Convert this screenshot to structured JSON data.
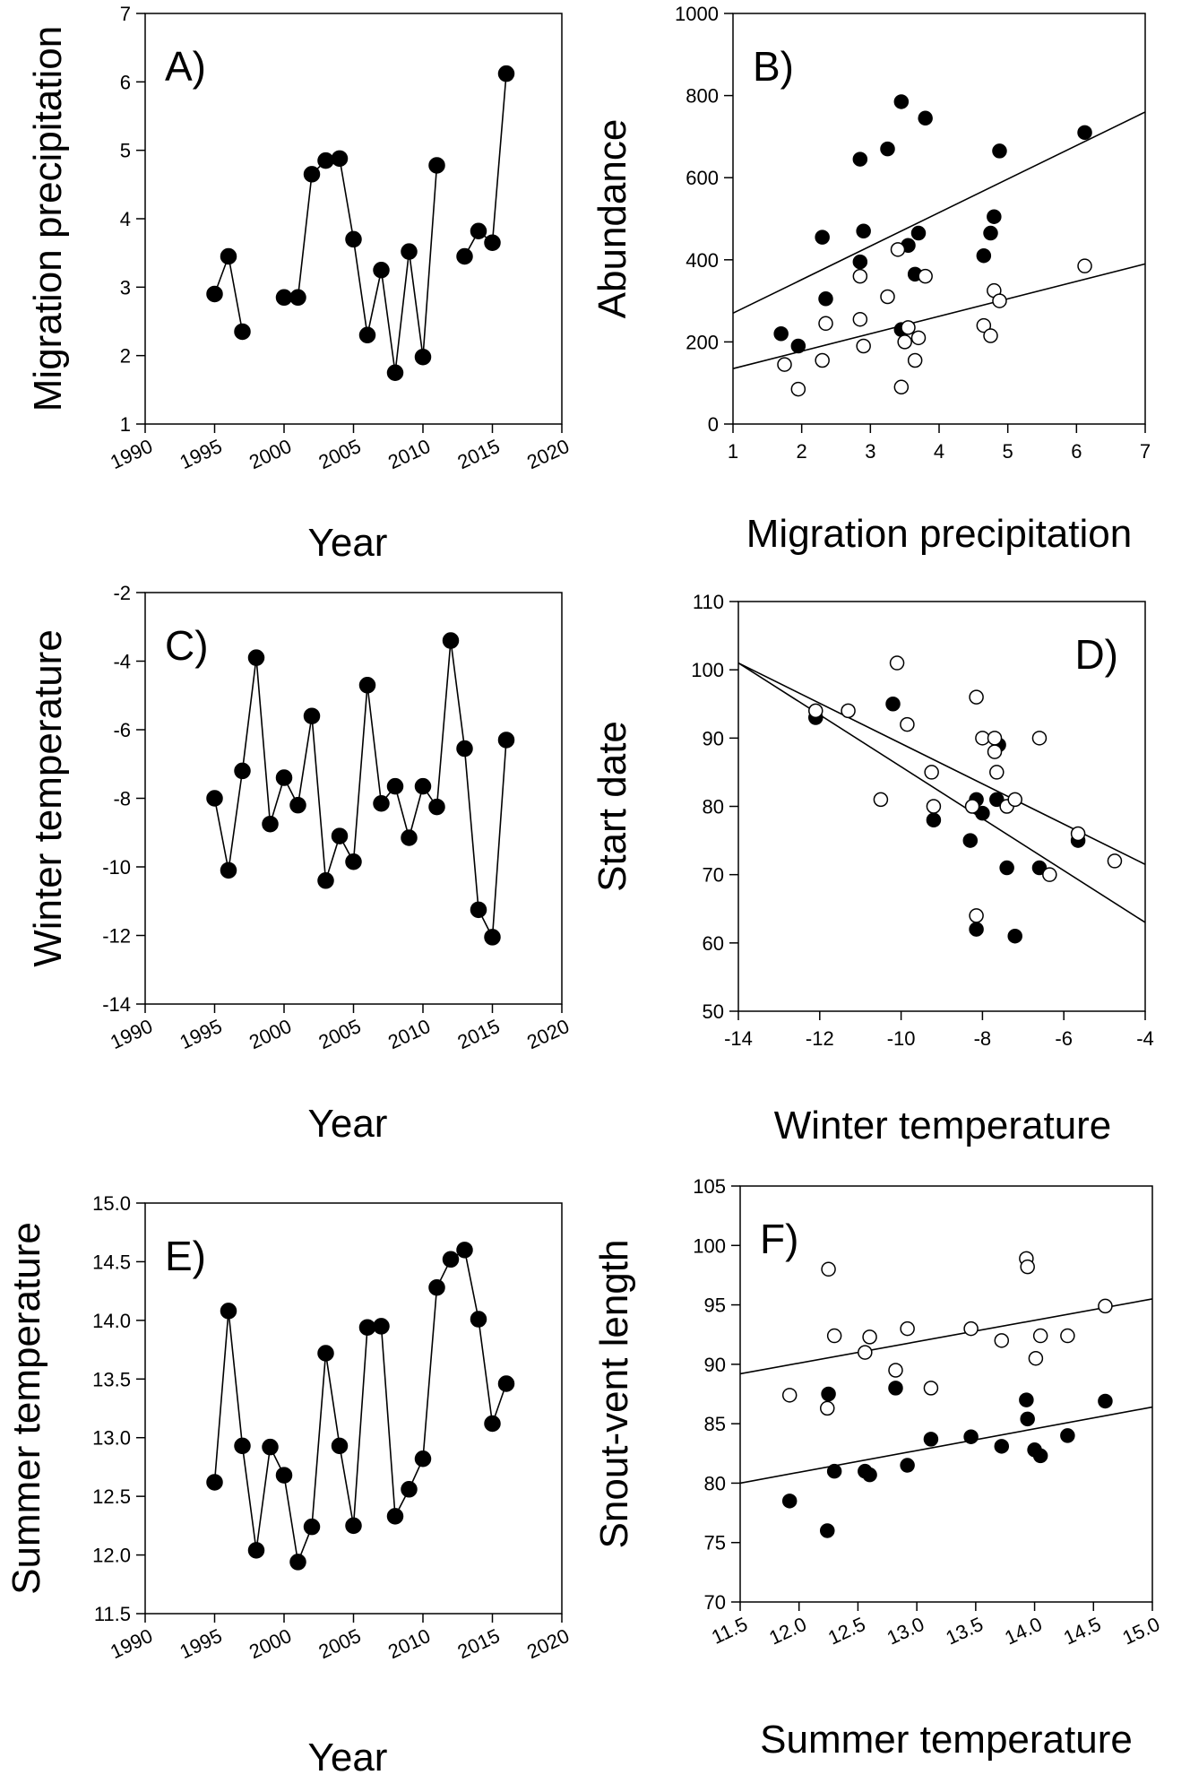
{
  "figure": {
    "background": "#ffffff",
    "ink": "#000000"
  },
  "chart_data": [
    {
      "panel": "A",
      "type": "line",
      "label": "A)",
      "xlabel": "Year",
      "ylabel": "Migration precipitation",
      "xlim": [
        1990,
        2020
      ],
      "ylim": [
        1,
        7
      ],
      "xticks": [
        1990,
        1995,
        2000,
        2005,
        2010,
        2015,
        2020
      ],
      "yticks": [
        1,
        2,
        3,
        4,
        5,
        6,
        7
      ],
      "series": [
        {
          "name": "Migration precipitation",
          "marker": "filled",
          "segments": [
            [
              [
                1995,
                2.9
              ],
              [
                1996,
                3.45
              ],
              [
                1997,
                2.35
              ]
            ],
            [
              [
                2000,
                2.85
              ],
              [
                2001,
                2.85
              ],
              [
                2002,
                4.65
              ],
              [
                2003,
                4.85
              ],
              [
                2004,
                4.88
              ],
              [
                2005,
                3.7
              ],
              [
                2006,
                2.3
              ],
              [
                2007,
                3.25
              ],
              [
                2008,
                1.75
              ],
              [
                2009,
                3.52
              ],
              [
                2010,
                1.98
              ],
              [
                2011,
                4.78
              ]
            ],
            [
              [
                2013,
                3.45
              ],
              [
                2014,
                3.82
              ],
              [
                2015,
                3.65
              ],
              [
                2016,
                6.12
              ]
            ]
          ]
        }
      ]
    },
    {
      "panel": "B",
      "type": "scatter",
      "label": "B)",
      "xlabel": "Migration precipitation",
      "ylabel": "Abundance",
      "xlim": [
        1,
        7
      ],
      "ylim": [
        0,
        1000
      ],
      "xticks": [
        1,
        2,
        3,
        4,
        5,
        6,
        7
      ],
      "yticks": [
        0,
        200,
        400,
        600,
        800,
        1000
      ],
      "series": [
        {
          "name": "filled",
          "marker": "filled",
          "x": [
            1.7,
            1.95,
            2.3,
            2.35,
            2.85,
            2.85,
            2.9,
            3.25,
            3.45,
            3.45,
            3.55,
            3.65,
            3.7,
            3.8,
            4.65,
            4.75,
            4.8,
            4.88,
            6.12
          ],
          "y": [
            220,
            190,
            455,
            305,
            645,
            395,
            470,
            670,
            785,
            230,
            435,
            365,
            465,
            745,
            410,
            465,
            505,
            665,
            710
          ],
          "fit": [
            [
              1,
              270
            ],
            [
              7,
              760
            ]
          ]
        },
        {
          "name": "open",
          "marker": "open",
          "x": [
            1.75,
            1.95,
            2.3,
            2.35,
            2.85,
            2.85,
            2.9,
            3.25,
            3.4,
            3.45,
            3.5,
            3.55,
            3.7,
            3.8,
            3.65,
            4.65,
            4.75,
            4.8,
            4.88,
            6.12
          ],
          "y": [
            145,
            85,
            155,
            245,
            360,
            255,
            190,
            310,
            425,
            90,
            200,
            235,
            210,
            360,
            155,
            240,
            215,
            325,
            300,
            385
          ],
          "fit": [
            [
              1,
              135
            ],
            [
              7,
              390
            ]
          ]
        }
      ]
    },
    {
      "panel": "C",
      "type": "line",
      "label": "C)",
      "xlabel": "Year",
      "ylabel": "Winter temperature",
      "xlim": [
        1990,
        2020
      ],
      "ylim": [
        -14,
        -2
      ],
      "xticks": [
        1990,
        1995,
        2000,
        2005,
        2010,
        2015,
        2020
      ],
      "yticks": [
        -14,
        -12,
        -10,
        -8,
        -6,
        -4,
        -2
      ],
      "series": [
        {
          "name": "Winter temperature",
          "marker": "filled",
          "segments": [
            [
              [
                1995,
                -8.0
              ],
              [
                1996,
                -10.1
              ],
              [
                1997,
                -7.2
              ],
              [
                1998,
                -3.9
              ],
              [
                1999,
                -8.75
              ],
              [
                2000,
                -7.4
              ],
              [
                2001,
                -8.2
              ],
              [
                2002,
                -5.6
              ],
              [
                2003,
                -10.4
              ],
              [
                2004,
                -9.1
              ],
              [
                2005,
                -9.85
              ],
              [
                2006,
                -4.7
              ],
              [
                2007,
                -8.15
              ],
              [
                2008,
                -7.65
              ],
              [
                2009,
                -9.15
              ],
              [
                2010,
                -7.65
              ],
              [
                2011,
                -8.25
              ],
              [
                2012,
                -3.4
              ],
              [
                2013,
                -6.55
              ],
              [
                2014,
                -11.25
              ],
              [
                2015,
                -12.05
              ],
              [
                2016,
                -6.3
              ]
            ]
          ]
        }
      ]
    },
    {
      "panel": "D",
      "type": "scatter",
      "label": "D)",
      "xlabel": "Winter temperature",
      "ylabel": "Start date",
      "xlim": [
        -14,
        -4
      ],
      "ylim": [
        50,
        110
      ],
      "xticks": [
        -14,
        -12,
        -10,
        -8,
        -6,
        -4
      ],
      "yticks": [
        50,
        60,
        70,
        80,
        90,
        100,
        110
      ],
      "series": [
        {
          "name": "filled",
          "marker": "filled",
          "x": [
            -12.1,
            -10.2,
            -9.2,
            -8.3,
            -8.15,
            -8.0,
            -8.15,
            -7.6,
            -7.65,
            -7.4,
            -7.2,
            -6.6,
            -5.65
          ],
          "y": [
            93,
            95,
            78,
            75,
            81,
            79,
            62,
            89,
            81,
            71,
            61,
            71,
            75
          ],
          "fit": [
            [
              -14,
              101
            ],
            [
              -4,
              63
            ]
          ]
        },
        {
          "name": "open",
          "marker": "open",
          "x": [
            -12.1,
            -11.3,
            -10.5,
            -10.1,
            -9.85,
            -9.25,
            -9.2,
            -8.25,
            -8.15,
            -8.15,
            -8.0,
            -7.65,
            -7.7,
            -7.7,
            -7.4,
            -7.2,
            -6.6,
            -6.35,
            -5.65,
            -4.75
          ],
          "y": [
            94,
            94,
            81,
            101,
            92,
            85,
            80,
            80,
            96,
            64,
            90,
            85,
            90,
            88,
            80,
            81,
            90,
            70,
            76,
            72
          ],
          "fit": [
            [
              -14,
              101
            ],
            [
              -4,
              71.5
            ]
          ]
        }
      ]
    },
    {
      "panel": "E",
      "type": "line",
      "label": "E)",
      "xlabel": "Year",
      "ylabel": "Summer temperature",
      "xlim": [
        1990,
        2020
      ],
      "ylim": [
        11.5,
        15.0
      ],
      "xticks": [
        1990,
        1995,
        2000,
        2005,
        2010,
        2015,
        2020
      ],
      "yticks": [
        "11.5",
        "12.0",
        "12.5",
        "13.0",
        "13.5",
        "14.0",
        "14.5",
        "15.0"
      ],
      "series": [
        {
          "name": "Summer temperature",
          "marker": "filled",
          "segments": [
            [
              [
                1995,
                12.62
              ],
              [
                1996,
                14.08
              ],
              [
                1997,
                12.93
              ],
              [
                1998,
                12.04
              ],
              [
                1999,
                12.92
              ],
              [
                2000,
                12.68
              ],
              [
                2001,
                11.94
              ],
              [
                2002,
                12.24
              ],
              [
                2003,
                13.72
              ],
              [
                2004,
                12.93
              ],
              [
                2005,
                12.25
              ],
              [
                2006,
                13.94
              ],
              [
                2007,
                13.95
              ],
              [
                2008,
                12.33
              ],
              [
                2009,
                12.56
              ],
              [
                2010,
                12.82
              ],
              [
                2011,
                14.28
              ],
              [
                2012,
                14.52
              ],
              [
                2013,
                14.6
              ],
              [
                2014,
                14.01
              ],
              [
                2015,
                13.12
              ],
              [
                2016,
                13.46
              ]
            ]
          ]
        }
      ]
    },
    {
      "panel": "F",
      "type": "scatter",
      "label": "F)",
      "xlabel": "Summer temperature",
      "ylabel": "Snout-vent length",
      "xlim": [
        11.5,
        15.0
      ],
      "ylim": [
        70,
        105
      ],
      "xticks": [
        "11.5",
        "12.0",
        "12.5",
        "13.0",
        "13.5",
        "14.0",
        "14.5",
        "15.0"
      ],
      "yticks": [
        70,
        75,
        80,
        85,
        90,
        95,
        100,
        105
      ],
      "series": [
        {
          "name": "filled",
          "marker": "filled",
          "x": [
            11.92,
            12.24,
            12.25,
            12.3,
            12.56,
            12.6,
            12.82,
            12.92,
            13.12,
            13.46,
            13.72,
            13.93,
            13.94,
            14.0,
            14.05,
            14.28,
            14.6
          ],
          "y": [
            78.5,
            76,
            87.5,
            81,
            81,
            80.7,
            88,
            81.5,
            83.7,
            83.9,
            83.1,
            87,
            85.4,
            82.8,
            82.3,
            84,
            86.9
          ],
          "fit": [
            [
              11.5,
              80
            ],
            [
              15.0,
              86.4
            ]
          ]
        },
        {
          "name": "open",
          "marker": "open",
          "x": [
            11.92,
            12.24,
            12.25,
            12.3,
            12.56,
            12.6,
            12.82,
            12.92,
            13.12,
            13.46,
            13.72,
            13.93,
            13.94,
            14.01,
            14.05,
            14.28,
            14.6
          ],
          "y": [
            87.4,
            86.3,
            98,
            92.4,
            91,
            92.3,
            89.5,
            93,
            88,
            93,
            92,
            98.9,
            98.2,
            90.5,
            92.4,
            92.4,
            94.9
          ],
          "fit": [
            [
              11.5,
              89.2
            ],
            [
              15.0,
              95.5
            ]
          ]
        }
      ]
    }
  ]
}
